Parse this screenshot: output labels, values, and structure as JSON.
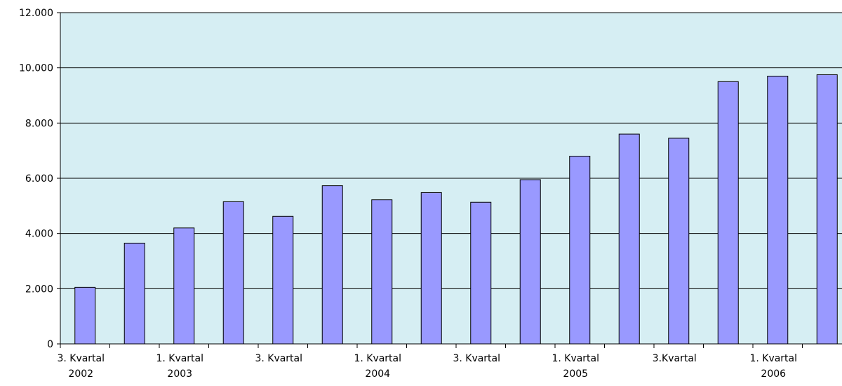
{
  "chart_data": {
    "type": "bar",
    "categories": [
      "3. Kvartal\n2002",
      null,
      "1. Kvartal\n2003",
      null,
      "3. Kvartal",
      null,
      "1. Kvartal\n2004",
      null,
      "3. Kvartal",
      null,
      "1. Kvartal\n2005",
      null,
      "3.Kvartal",
      null,
      "1. Kvartal\n2006",
      null
    ],
    "values": [
      2050,
      3650,
      4200,
      5150,
      4620,
      5730,
      5220,
      5480,
      5130,
      5950,
      6800,
      7600,
      7450,
      9500,
      9700,
      9750
    ],
    "color": "#9999ff",
    "ylim": [
      0,
      12000
    ],
    "yticks": [
      0,
      {
        "value": 2000,
        "label": "2.000"
      },
      {
        "value": 4000,
        "label": "4.000"
      },
      {
        "value": 6000,
        "label": "6.000"
      },
      {
        "value": 8000,
        "label": "8.000"
      },
      {
        "value": 10000,
        "label": "10.000"
      },
      {
        "value": 12000,
        "label": "12.000"
      }
    ],
    "grid": true
  }
}
